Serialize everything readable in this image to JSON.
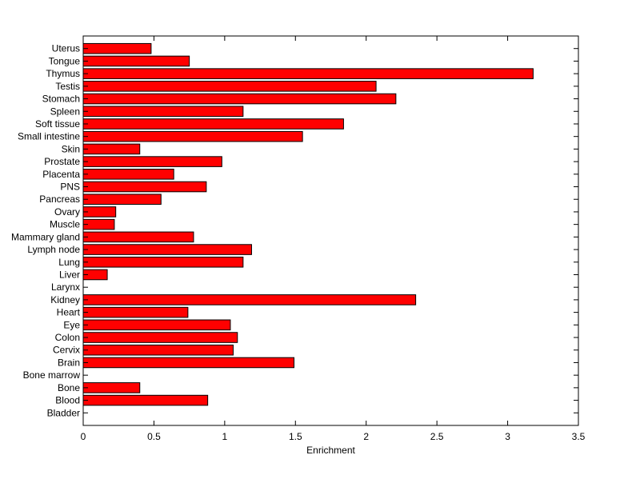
{
  "chart_data": {
    "type": "bar",
    "orientation": "horizontal",
    "categories": [
      "Bladder",
      "Blood",
      "Bone",
      "Bone marrow",
      "Brain",
      "Cervix",
      "Colon",
      "Eye",
      "Heart",
      "Kidney",
      "Larynx",
      "Liver",
      "Lung",
      "Lymph node",
      "Mammary gland",
      "Muscle",
      "Ovary",
      "Pancreas",
      "PNS",
      "Placenta",
      "Prostate",
      "Skin",
      "Small intestine",
      "Soft tissue",
      "Spleen",
      "Stomach",
      "Testis",
      "Thymus",
      "Tongue",
      "Uterus"
    ],
    "values": [
      0,
      0.88,
      0.4,
      0,
      1.49,
      1.06,
      1.09,
      1.04,
      0.74,
      2.35,
      0,
      0.17,
      1.13,
      1.19,
      0.78,
      0.22,
      0.23,
      0.55,
      0.87,
      0.64,
      0.98,
      0.4,
      1.55,
      1.84,
      1.13,
      2.21,
      2.07,
      3.18,
      0.75,
      0.48
    ],
    "xlabel": "Enrichment",
    "ylabel": "",
    "title": "",
    "xlim": [
      0,
      3.5
    ],
    "xticks": [
      0,
      0.5,
      1,
      1.5,
      2,
      2.5,
      3,
      3.5
    ],
    "xtick_labels": [
      "0",
      "0.5",
      "1",
      "1.5",
      "2",
      "2.5",
      "3",
      "3.5"
    ],
    "grid": false,
    "bar_color": "#ff0000",
    "edge_color": "#000000"
  }
}
